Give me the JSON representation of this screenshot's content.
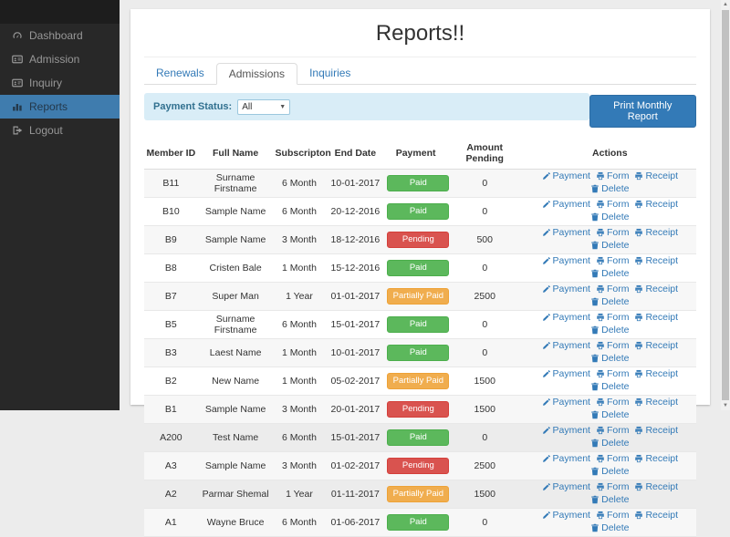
{
  "header": {
    "title": "Reports!!"
  },
  "sidebar": {
    "items": [
      {
        "label": "Dashboard",
        "icon": "dashboard-icon",
        "active": false
      },
      {
        "label": "Admission",
        "icon": "id-card-icon",
        "active": false
      },
      {
        "label": "Inquiry",
        "icon": "address-card-icon",
        "active": false
      },
      {
        "label": "Reports",
        "icon": "bar-chart-icon",
        "active": true
      },
      {
        "label": "Logout",
        "icon": "logout-icon",
        "active": false
      }
    ]
  },
  "tabs": [
    {
      "label": "Renewals",
      "active": false
    },
    {
      "label": "Admissions",
      "active": true
    },
    {
      "label": "Inquiries",
      "active": false
    }
  ],
  "filter": {
    "label": "Payment Status:",
    "selected": "All"
  },
  "print_button": "Print Monthly Report",
  "table": {
    "columns": [
      "Member ID",
      "Full Name",
      "Subscripton",
      "End Date",
      "Payment",
      "Amount Pending",
      "Actions"
    ],
    "actions": [
      "Payment",
      "Form",
      "Receipt",
      "Delete"
    ],
    "action_icons": {
      "Payment": "pencil-icon",
      "Form": "printer-icon",
      "Receipt": "printer-icon",
      "Delete": "trash-icon"
    },
    "rows": [
      {
        "id": "B11",
        "name": "Surname Firstname",
        "subscription": "6 Month",
        "end_date": "10-01-2017",
        "status": "Paid",
        "amount": "0"
      },
      {
        "id": "B10",
        "name": "Sample Name",
        "subscription": "6 Month",
        "end_date": "20-12-2016",
        "status": "Paid",
        "amount": "0"
      },
      {
        "id": "B9",
        "name": "Sample Name",
        "subscription": "3 Month",
        "end_date": "18-12-2016",
        "status": "Pending",
        "amount": "500"
      },
      {
        "id": "B8",
        "name": "Cristen Bale",
        "subscription": "1 Month",
        "end_date": "15-12-2016",
        "status": "Paid",
        "amount": "0"
      },
      {
        "id": "B7",
        "name": "Super Man",
        "subscription": "1 Year",
        "end_date": "01-01-2017",
        "status": "Partially Paid",
        "amount": "2500"
      },
      {
        "id": "B5",
        "name": "Surname Firstname",
        "subscription": "6 Month",
        "end_date": "15-01-2017",
        "status": "Paid",
        "amount": "0"
      },
      {
        "id": "B3",
        "name": "Laest Name",
        "subscription": "1 Month",
        "end_date": "10-01-2017",
        "status": "Paid",
        "amount": "0"
      },
      {
        "id": "B2",
        "name": "New Name",
        "subscription": "1 Month",
        "end_date": "05-02-2017",
        "status": "Partially Paid",
        "amount": "1500"
      },
      {
        "id": "B1",
        "name": "Sample Name",
        "subscription": "3 Month",
        "end_date": "20-01-2017",
        "status": "Pending",
        "amount": "1500"
      },
      {
        "id": "A200",
        "name": "Test Name",
        "subscription": "6 Month",
        "end_date": "15-01-2017",
        "status": "Paid",
        "amount": "0"
      },
      {
        "id": "A3",
        "name": "Sample Name",
        "subscription": "3 Month",
        "end_date": "01-02-2017",
        "status": "Pending",
        "amount": "2500"
      },
      {
        "id": "A2",
        "name": "Parmar Shemal",
        "subscription": "1 Year",
        "end_date": "01-11-2017",
        "status": "Partially Paid",
        "amount": "1500"
      },
      {
        "id": "A1",
        "name": "Wayne Bruce",
        "subscription": "6 Month",
        "end_date": "01-06-2017",
        "status": "Paid",
        "amount": "0"
      }
    ]
  },
  "colors": {
    "accent": "#337ab7",
    "active_nav": "#3f7cae",
    "paid": "#5cb85c",
    "pending": "#d9534f",
    "partially_paid": "#f0ad4e",
    "filter_bg": "#d9edf7"
  }
}
